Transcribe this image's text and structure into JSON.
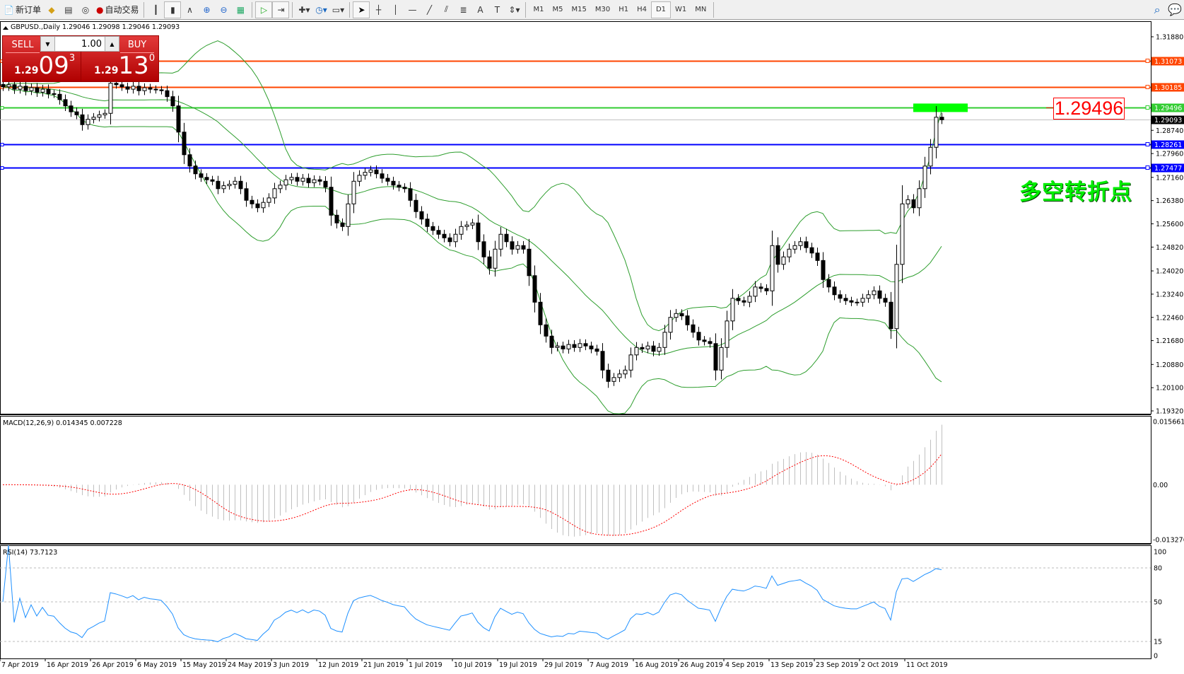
{
  "toolbar": {
    "new_order": "新订单",
    "auto_trading": "自动交易",
    "icons": [
      "new-order-icon",
      "gold-icon",
      "market-watch-icon",
      "signal-icon",
      "auto-trading-icon",
      "bar-chart-icon",
      "candlestick-icon",
      "line-chart-icon",
      "zoom-in-icon",
      "zoom-out-icon",
      "tile-windows-icon",
      "auto-scroll-icon",
      "chart-shift-icon",
      "indicators-icon",
      "periods-icon",
      "templates-icon",
      "cursor-icon",
      "crosshair-icon",
      "vertical-line-icon",
      "horizontal-line-icon",
      "trendline-icon",
      "channel-icon",
      "fibonacci-icon",
      "text-icon",
      "text-label-icon",
      "arrows-icon"
    ],
    "timeframes": [
      "M1",
      "M5",
      "M15",
      "M30",
      "H1",
      "H4",
      "D1",
      "W1",
      "MN"
    ],
    "active_timeframe": "D1"
  },
  "chart": {
    "header": "GBPUSD.,Daily  1.29046 1.29098 1.29046 1.29093",
    "annotation": "多空转折点",
    "price_box": "1.29496"
  },
  "trade_panel": {
    "sell": "SELL",
    "buy": "BUY",
    "lot": "1.00",
    "sell_prefix": "1.29",
    "sell_big": "09",
    "sell_sup": "3",
    "buy_prefix": "1.29",
    "buy_big": "13",
    "buy_sup": "0"
  },
  "colors": {
    "resistance": "#ff4500",
    "pivot": "#32cd32",
    "support": "#0000ff",
    "bands": "#2e9e2e",
    "macd_hist": "#c0c0c0",
    "macd_signal": "#ff0000",
    "rsi": "#1e90ff",
    "bid": "#c0c0c0",
    "pivot_zone": "#00ff00"
  },
  "chart_data": {
    "type": "candlestick",
    "symbol": "GBPUSD.",
    "timeframe": "Daily",
    "ylim": [
      1.1932,
      1.3188
    ],
    "price_ticks": [
      "1.31880",
      "1.28740",
      "1.27960",
      "1.27160",
      "1.26380",
      "1.25600",
      "1.24820",
      "1.24020",
      "1.23240",
      "1.22460",
      "1.21680",
      "1.20880",
      "1.20100",
      "1.19320"
    ],
    "horizontal_lines": [
      {
        "price": "1.31073",
        "role": "resistance"
      },
      {
        "price": "1.30185",
        "role": "resistance"
      },
      {
        "price": "1.29496",
        "role": "pivot"
      },
      {
        "price": "1.29093",
        "role": "bid"
      },
      {
        "price": "1.28261",
        "role": "support"
      },
      {
        "price": "1.27477",
        "role": "support"
      }
    ],
    "date_labels": [
      "7 Apr 2019",
      "16 Apr 2019",
      "26 Apr 2019",
      "6 May 2019",
      "15 May 2019",
      "24 May 2019",
      "3 Jun 2019",
      "12 Jun 2019",
      "21 Jun 2019",
      "1 Jul 2019",
      "10 Jul 2019",
      "19 Jul 2019",
      "29 Jul 2019",
      "7 Aug 2019",
      "16 Aug 2019",
      "26 Aug 2019",
      "4 Sep 2019",
      "13 Sep 2019",
      "23 Sep 2019",
      "2 Oct 2019",
      "11 Oct 2019"
    ],
    "close": [
      1.302,
      1.3027,
      1.3012,
      1.3022,
      1.3007,
      1.3017,
      1.3002,
      1.3012,
      1.2997,
      1.2995,
      1.2977,
      1.2956,
      1.2936,
      1.2926,
      1.2893,
      1.2911,
      1.2918,
      1.2926,
      1.2931,
      1.3032,
      1.3027,
      1.302,
      1.3012,
      1.3022,
      1.3007,
      1.3017,
      1.3012,
      1.301,
      1.3007,
      1.2987,
      1.2956,
      1.2868,
      1.2792,
      1.2754,
      1.2728,
      1.2716,
      1.2708,
      1.2703,
      1.2678,
      1.2688,
      1.2693,
      1.2703,
      1.2678,
      1.2639,
      1.2627,
      1.2614,
      1.2632,
      1.2647,
      1.2678,
      1.269,
      1.2708,
      1.2716,
      1.2703,
      1.2713,
      1.2698,
      1.2708,
      1.2703,
      1.2683,
      1.2589,
      1.2563,
      1.2551,
      1.2627,
      1.2703,
      1.2723,
      1.2733,
      1.2741,
      1.2728,
      1.2713,
      1.2703,
      1.269,
      1.2683,
      1.2678,
      1.2639,
      1.2601,
      1.2576,
      1.2551,
      1.2538,
      1.2525,
      1.2513,
      1.25,
      1.2525,
      1.2551,
      1.2556,
      1.2563,
      1.25,
      1.2449,
      1.2411,
      1.2475,
      1.2525,
      1.25,
      1.2475,
      1.2487,
      1.2475,
      1.2386,
      1.2297,
      1.2221,
      1.2183,
      1.2145,
      1.215,
      1.214,
      1.2155,
      1.2145,
      1.2158,
      1.215,
      1.214,
      1.2132,
      1.2069,
      1.2031,
      1.2044,
      1.2056,
      1.2069,
      1.212,
      1.2145,
      1.214,
      1.215,
      1.2132,
      1.2145,
      1.2196,
      1.2246,
      1.2259,
      1.2251,
      1.2221,
      1.2196,
      1.217,
      1.2165,
      1.2158,
      1.2069,
      1.2145,
      1.2234,
      1.231,
      1.2302,
      1.2297,
      1.2317,
      1.2348,
      1.2343,
      1.2335,
      1.2487,
      1.2424,
      1.2449,
      1.2475,
      1.2487,
      1.25,
      1.248,
      1.2462,
      1.2437,
      1.2373,
      1.2348,
      1.2322,
      1.231,
      1.2302,
      1.2297,
      1.2297,
      1.231,
      1.2322,
      1.2335,
      1.231,
      1.2297,
      1.2208,
      1.2424,
      1.2627,
      1.2641,
      1.2614,
      1.2678,
      1.2754,
      1.2817,
      1.2918,
      1.29093
    ],
    "indicators": {
      "bollinger": {
        "period": 20,
        "deviation": 2
      },
      "macd": {
        "label": "MACD(12,26,9) 0.014345 0.007228",
        "ticks": [
          "0.015661",
          "0.00",
          "-0.013276"
        ],
        "ylim": [
          -0.013276,
          0.015661
        ]
      },
      "rsi": {
        "label": "RSI(14) 73.7123",
        "ticks": [
          "100",
          "80",
          "50",
          "15",
          "0"
        ],
        "levels": [
          80,
          50,
          15
        ],
        "ylim": [
          0,
          100
        ]
      }
    }
  }
}
